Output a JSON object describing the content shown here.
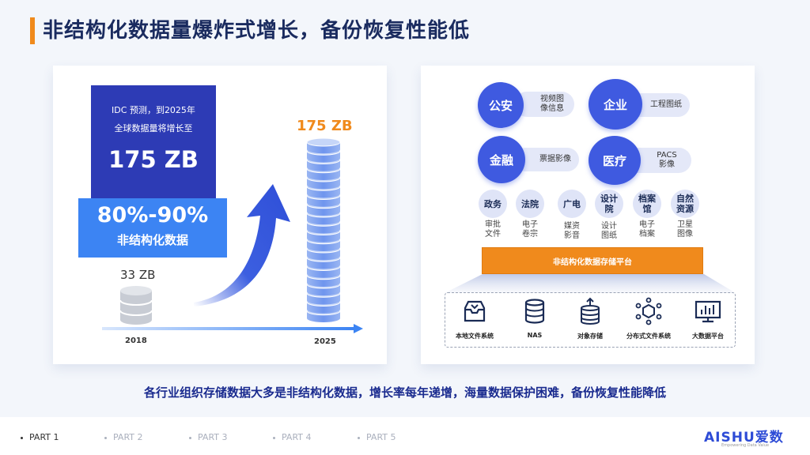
{
  "title": "非结构化数据量爆炸式增长，备份恢复性能低",
  "left": {
    "idc_line1": "IDC 预测，到2025年",
    "idc_line2": "全球数据量将增长至",
    "idc_value": "175 ZB",
    "pct_value": "80%-90%",
    "pct_label": "非结构化数据",
    "start_value": "33 ZB",
    "end_value": "175 ZB",
    "start_year": "2018",
    "end_year": "2025"
  },
  "right": {
    "sectors": [
      {
        "name": "公安",
        "desc": "视频图像信息"
      },
      {
        "name": "企业",
        "desc": "工程图纸"
      },
      {
        "name": "金融",
        "desc": "票据影像"
      },
      {
        "name": "医疗",
        "desc": "PACS影像"
      }
    ],
    "sectors_desc_lines": [
      [
        "视频图",
        "像信息"
      ],
      [
        "工程图纸"
      ],
      [
        "票据影像"
      ],
      [
        "PACS",
        "影像"
      ]
    ],
    "small": [
      {
        "name": "政务",
        "desc1": "审批",
        "desc2": "文件"
      },
      {
        "name": "法院",
        "desc1": "电子",
        "desc2": "卷宗"
      },
      {
        "name": "广电",
        "desc1": "媒资",
        "desc2": "影音"
      },
      {
        "name": "设计院",
        "desc1": "设计",
        "desc2": "图纸"
      },
      {
        "name": "档案馆",
        "desc1": "电子",
        "desc2": "档案"
      },
      {
        "name": "自然资源",
        "desc1": "卫星",
        "desc2": "图像"
      }
    ],
    "platform": "非结构化数据存储平台",
    "storage": [
      {
        "label": "本地文件系统",
        "icon": "inbox-tray-icon"
      },
      {
        "label": "NAS",
        "icon": "server-stack-icon"
      },
      {
        "label": "对象存储",
        "icon": "database-upload-icon"
      },
      {
        "label": "分布式文件系统",
        "icon": "cube-network-icon"
      },
      {
        "label": "大数据平台",
        "icon": "monitor-chart-icon"
      }
    ]
  },
  "caption": "各行业组织存储数据大多是非结构化数据，增长率每年递增，海量数据保护困难，备份恢复性能降低",
  "footer": {
    "parts": [
      "PART 1",
      "PART 2",
      "PART 3",
      "PART 4",
      "PART 5"
    ],
    "active": "PART 1",
    "logo": "AISHU爱数",
    "logo_sub": "Empowering Data Value"
  },
  "colors": {
    "accent": "#f08a1c",
    "primary": "#3f5ae0",
    "dark": "#2d3bb5",
    "blue": "#3c84f3"
  }
}
